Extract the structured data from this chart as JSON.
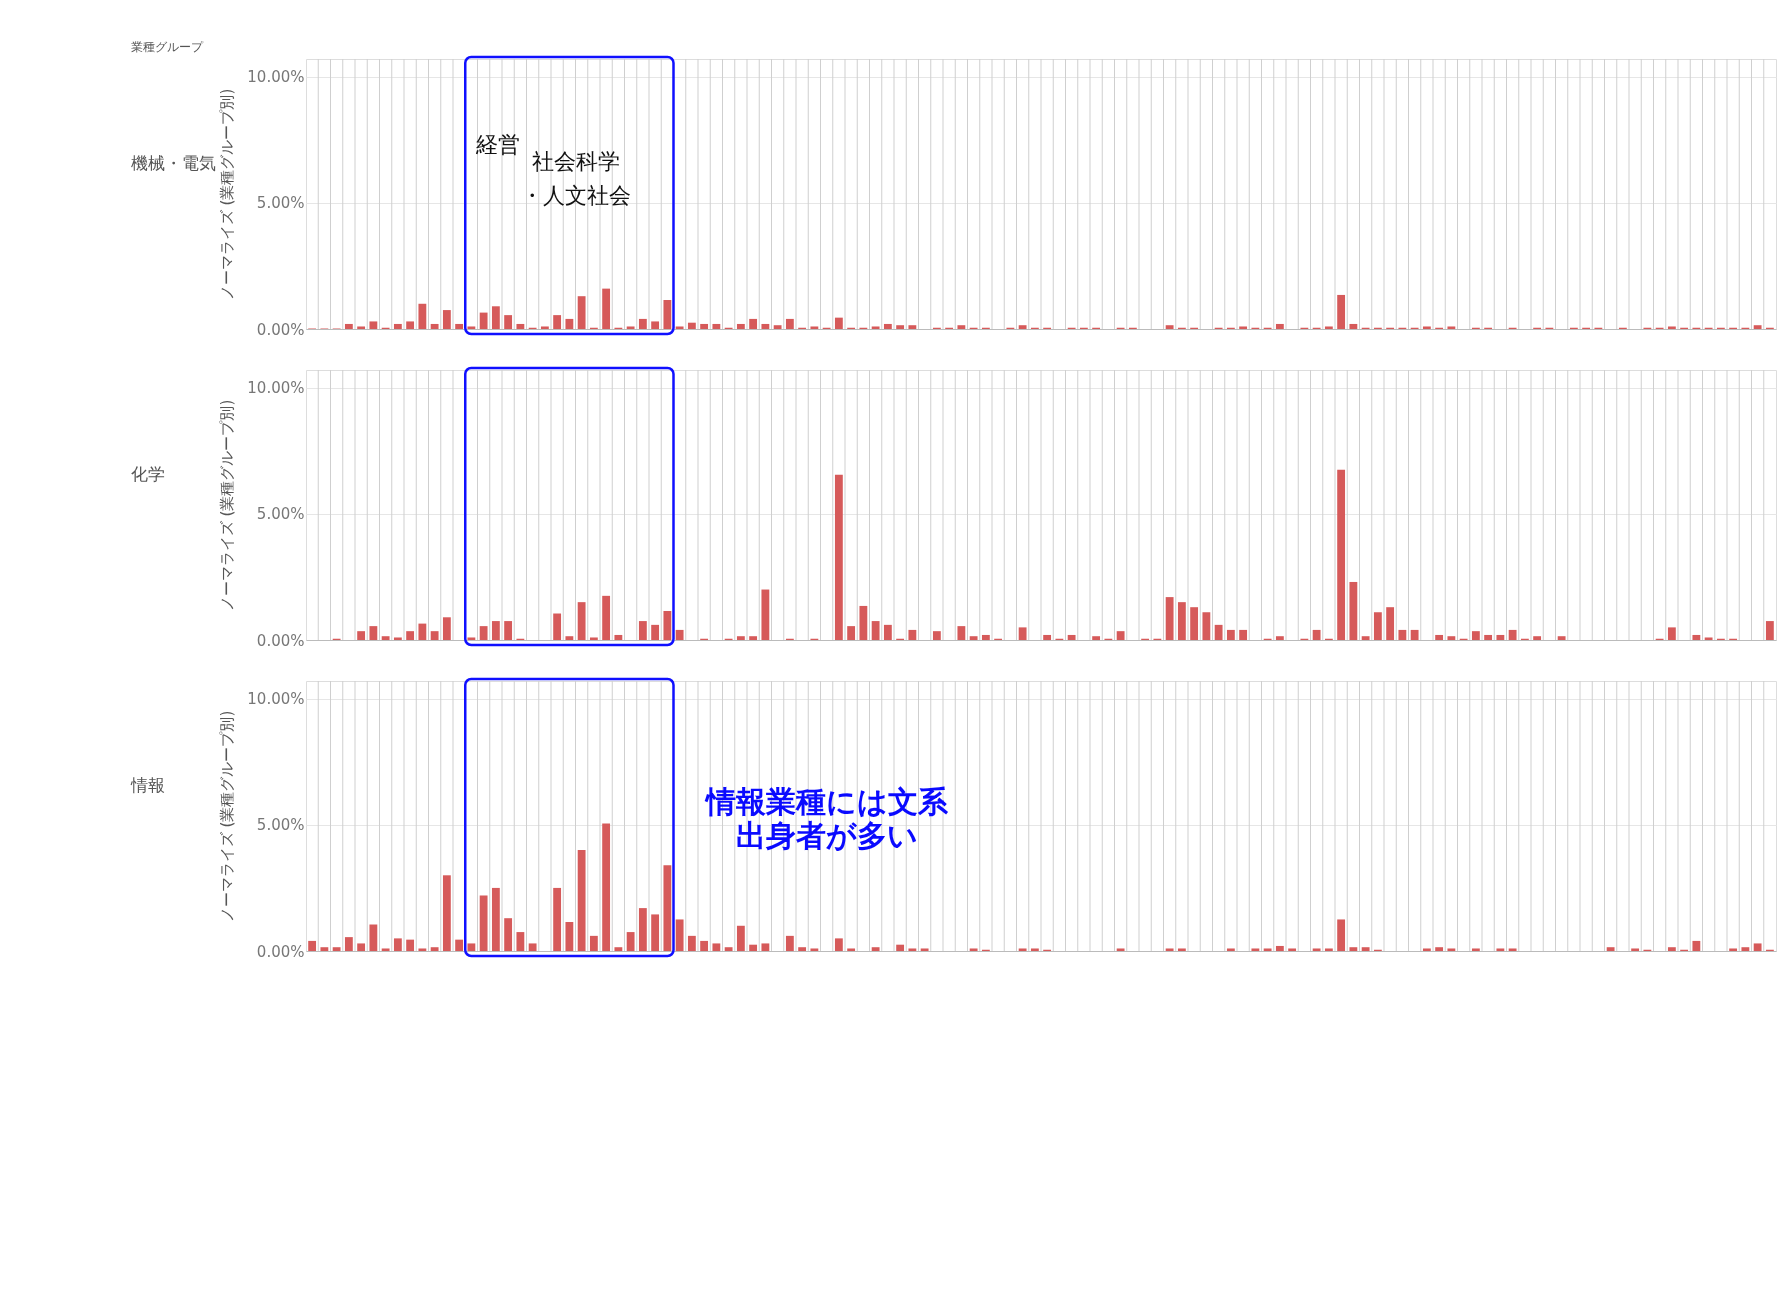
{
  "chart_data": [
    {
      "type": "bar",
      "title": "機械・電気",
      "ylabel": "ノーマライズ (業種グループ別)",
      "tick_labels": "y",
      "grid": true,
      "color": "#d65a5a",
      "ylim": [
        0,
        10.7
      ],
      "yticks": [
        {
          "value": 0,
          "label": "0.00%"
        },
        {
          "value": 5,
          "label": "5.00%"
        },
        {
          "value": 10,
          "label": "10.00%"
        }
      ],
      "annotations": [
        "業種グループ",
        "経営",
        "社会科学・人文社会"
      ],
      "categories": [
        null,
        null,
        null,
        null,
        null,
        null,
        null,
        null,
        null,
        null,
        null,
        null,
        null,
        null,
        null,
        null,
        null,
        null,
        null,
        null,
        null,
        null,
        null,
        null,
        null,
        null,
        null,
        null,
        null,
        null,
        null,
        null,
        null,
        null,
        null,
        null,
        null,
        null,
        null,
        null,
        null,
        null,
        null,
        null,
        null,
        null,
        null,
        null,
        null,
        null,
        null,
        null,
        null,
        null,
        null,
        null,
        null,
        null,
        null,
        null,
        null,
        null,
        null,
        null,
        null,
        null,
        null,
        null,
        null,
        null,
        null,
        null,
        null,
        null,
        null,
        null,
        null,
        null,
        null,
        null,
        null,
        null,
        null,
        null,
        null,
        null,
        null,
        null,
        null,
        null,
        null,
        null,
        null,
        null,
        null,
        null,
        null,
        null,
        null,
        null,
        null,
        null,
        null,
        null,
        null,
        null,
        null,
        null,
        null,
        null,
        null,
        null,
        null,
        null,
        null,
        null,
        null,
        null,
        null,
        null
      ],
      "values": [
        0.02,
        0.02,
        0.02,
        0.2,
        0.1,
        0.3,
        0.05,
        0.2,
        0.3,
        1.0,
        0.2,
        0.75,
        0.2,
        0.1,
        0.65,
        0.9,
        0.55,
        0.2,
        0.05,
        0.1,
        0.55,
        0.4,
        1.3,
        0.05,
        1.6,
        0.05,
        0.1,
        0.4,
        0.3,
        1.15,
        0.1,
        0.25,
        0.2,
        0.2,
        0.05,
        0.2,
        0.4,
        0.2,
        0.15,
        0.4,
        0.05,
        0.1,
        0.05,
        0.45,
        0.05,
        0.05,
        0.1,
        0.2,
        0.15,
        0.15,
        0,
        0.05,
        0.05,
        0.15,
        0.05,
        0.05,
        0,
        0.05,
        0.15,
        0.05,
        0.05,
        0,
        0.05,
        0.05,
        0.05,
        0,
        0.05,
        0.05,
        0,
        0,
        0.15,
        0.05,
        0.05,
        0,
        0.05,
        0.05,
        0.1,
        0.05,
        0.05,
        0.2,
        0,
        0.05,
        0.05,
        0.1,
        1.35,
        0.2,
        0.05,
        0.05,
        0.05,
        0.05,
        0.05,
        0.1,
        0.05,
        0.1,
        0,
        0.05,
        0.05,
        0,
        0.05,
        0,
        0.05,
        0.05,
        0,
        0.05,
        0.05,
        0.05,
        0,
        0.05,
        0,
        0.05,
        0.05,
        0.1,
        0.05,
        0.05,
        0.05,
        0.05,
        0.05,
        0.05,
        0.15,
        0.05
      ]
    },
    {
      "type": "bar",
      "title": "化学",
      "ylabel": "ノーマライズ (業種グループ別)",
      "tick_labels": "y",
      "grid": true,
      "color": "#d65a5a",
      "ylim": [
        0,
        10.7
      ],
      "yticks": [
        {
          "value": 0,
          "label": "0.00%"
        },
        {
          "value": 5,
          "label": "5.00%"
        },
        {
          "value": 10,
          "label": "10.00%"
        }
      ],
      "categories": [
        null,
        null,
        null,
        null,
        null,
        null,
        null,
        null,
        null,
        null,
        null,
        null,
        null,
        null,
        null,
        null,
        null,
        null,
        null,
        null,
        null,
        null,
        null,
        null,
        null,
        null,
        null,
        null,
        null,
        null,
        null,
        null,
        null,
        null,
        null,
        null,
        null,
        null,
        null,
        null,
        null,
        null,
        null,
        null,
        null,
        null,
        null,
        null,
        null,
        null,
        null,
        null,
        null,
        null,
        null,
        null,
        null,
        null,
        null,
        null,
        null,
        null,
        null,
        null,
        null,
        null,
        null,
        null,
        null,
        null,
        null,
        null,
        null,
        null,
        null,
        null,
        null,
        null,
        null,
        null,
        null,
        null,
        null,
        null,
        null,
        null,
        null,
        null,
        null,
        null,
        null,
        null,
        null,
        null,
        null,
        null,
        null,
        null,
        null,
        null,
        null,
        null,
        null,
        null,
        null,
        null,
        null,
        null,
        null,
        null,
        null,
        null,
        null,
        null,
        null,
        null,
        null,
        null,
        null,
        null
      ],
      "values": [
        0,
        0,
        0.05,
        0,
        0.35,
        0.55,
        0.15,
        0.1,
        0.35,
        0.65,
        0.35,
        0.9,
        0,
        0.1,
        0.55,
        0.75,
        0.75,
        0.05,
        0,
        0,
        1.05,
        0.15,
        1.5,
        0.1,
        1.75,
        0.2,
        0,
        0.75,
        0.6,
        1.15,
        0.4,
        0,
        0.05,
        0,
        0.05,
        0.15,
        0.15,
        2.0,
        0,
        0.05,
        0,
        0.05,
        0,
        6.55,
        0.55,
        1.35,
        0.75,
        0.6,
        0.05,
        0.4,
        0,
        0.35,
        0,
        0.55,
        0.15,
        0.2,
        0.05,
        0,
        0.5,
        0,
        0.2,
        0.05,
        0.2,
        0,
        0.15,
        0.05,
        0.35,
        0,
        0.05,
        0.05,
        1.7,
        1.5,
        1.3,
        1.1,
        0.6,
        0.4,
        0.4,
        0,
        0.05,
        0.15,
        0,
        0.05,
        0.4,
        0.05,
        6.75,
        2.3,
        0.15,
        1.1,
        1.3,
        0.4,
        0.4,
        0,
        0.2,
        0.15,
        0.05,
        0.35,
        0.2,
        0.2,
        0.4,
        0.05,
        0.15,
        0,
        0.15,
        0,
        0,
        0,
        0,
        0,
        0,
        0,
        0.05,
        0.5,
        0,
        0.2,
        0.1,
        0.05,
        0.05,
        0,
        0,
        0.75
      ]
    },
    {
      "type": "bar",
      "title": "情報",
      "ylabel": "ノーマライズ (業種グループ別)",
      "tick_labels": "y",
      "grid": true,
      "color": "#d65a5a",
      "ylim": [
        0,
        10.7
      ],
      "yticks": [
        {
          "value": 0,
          "label": "0.00%"
        },
        {
          "value": 5,
          "label": "5.00%"
        },
        {
          "value": 10,
          "label": "10.00%"
        }
      ],
      "annotations": [
        "情報業種には文系出身者が多い"
      ],
      "categories": [
        null,
        null,
        null,
        null,
        null,
        null,
        null,
        null,
        null,
        null,
        null,
        null,
        null,
        null,
        null,
        null,
        null,
        null,
        null,
        null,
        null,
        null,
        null,
        null,
        null,
        null,
        null,
        null,
        null,
        null,
        null,
        null,
        null,
        null,
        null,
        null,
        null,
        null,
        null,
        null,
        null,
        null,
        null,
        null,
        null,
        null,
        null,
        null,
        null,
        null,
        null,
        null,
        null,
        null,
        null,
        null,
        null,
        null,
        null,
        null,
        null,
        null,
        null,
        null,
        null,
        null,
        null,
        null,
        null,
        null,
        null,
        null,
        null,
        null,
        null,
        null,
        null,
        null,
        null,
        null,
        null,
        null,
        null,
        null,
        null,
        null,
        null,
        null,
        null,
        null,
        null,
        null,
        null,
        null,
        null,
        null,
        null,
        null,
        null,
        null,
        null,
        null,
        null,
        null,
        null,
        null,
        null,
        null,
        null,
        null,
        null,
        null,
        null,
        null,
        null,
        null,
        null,
        null,
        null,
        null
      ],
      "values": [
        0.4,
        0.15,
        0.15,
        0.55,
        0.3,
        1.05,
        0.1,
        0.5,
        0.45,
        0.1,
        0.15,
        3.0,
        0.45,
        0.3,
        2.2,
        2.5,
        1.3,
        0.75,
        0.3,
        0,
        2.5,
        1.15,
        4.0,
        0.6,
        5.05,
        0.15,
        0.75,
        1.7,
        1.45,
        3.4,
        1.25,
        0.6,
        0.4,
        0.3,
        0.15,
        1.0,
        0.25,
        0.3,
        0,
        0.6,
        0.15,
        0.1,
        0,
        0.5,
        0.1,
        0,
        0.15,
        0,
        0.25,
        0.1,
        0.1,
        0,
        0,
        0,
        0.1,
        0.05,
        0,
        0,
        0.1,
        0.1,
        0.05,
        0,
        0,
        0,
        0,
        0,
        0.1,
        0,
        0,
        0,
        0.1,
        0.1,
        0,
        0,
        0,
        0.1,
        0,
        0.1,
        0.1,
        0.2,
        0.1,
        0,
        0.1,
        0.1,
        1.25,
        0.15,
        0.15,
        0.05,
        0,
        0,
        0,
        0.1,
        0.15,
        0.1,
        0,
        0.1,
        0,
        0.1,
        0.1,
        0,
        0,
        0,
        0,
        0,
        0,
        0,
        0.15,
        0,
        0.1,
        0.05,
        0,
        0.15,
        0.05,
        0.4,
        0,
        0,
        0.1,
        0.15,
        0.3,
        0.05
      ]
    }
  ]
}
